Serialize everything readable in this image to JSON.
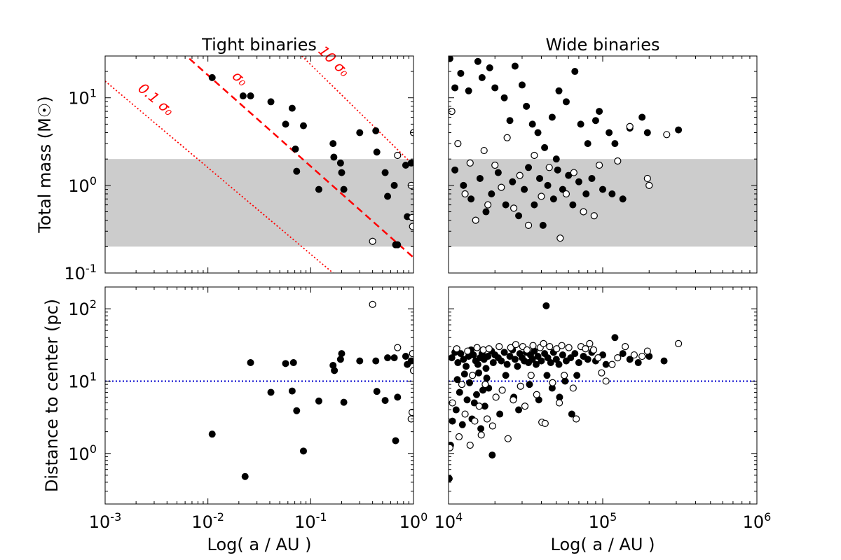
{
  "chart_data": [
    {
      "type": "scatter",
      "title": "Tight binaries",
      "xlabel": "",
      "ylabel": "Total mass (M☉)",
      "xscale": "log",
      "yscale": "log",
      "xlim": [
        0.001,
        1
      ],
      "ylim": [
        0.1,
        30
      ],
      "x_tick_labels": [],
      "y_tick_labels": [
        "10^1",
        "10^0",
        "10^-1"
      ],
      "band": {
        "y": [
          0.2,
          2.0
        ],
        "color": "#cccccc"
      },
      "lines": [
        {
          "label": "0.1 σ₀",
          "style": "dotted",
          "color": "#ff0000",
          "x": [
            0.001,
            0.165
          ],
          "y": [
            15.5,
            0.1
          ]
        },
        {
          "label": "σ₀",
          "style": "dashed",
          "color": "#ff0000",
          "x": [
            0.0066,
            1.0
          ],
          "y": [
            28,
            0.15
          ]
        },
        {
          "label": "10 σ₀",
          "style": "dotted",
          "color": "#ff0000",
          "x": [
            0.082,
            1.0
          ],
          "y": [
            30,
            1.7
          ]
        }
      ],
      "filled": [
        [
          0.011,
          17
        ],
        [
          0.022,
          10.5
        ],
        [
          0.026,
          10.5
        ],
        [
          0.041,
          9
        ],
        [
          0.057,
          5
        ],
        [
          0.066,
          7.6
        ],
        [
          0.071,
          2.6
        ],
        [
          0.073,
          1.45
        ],
        [
          0.085,
          4.8
        ],
        [
          0.12,
          0.9
        ],
        [
          0.165,
          3.0
        ],
        [
          0.168,
          2.1
        ],
        [
          0.195,
          1.8
        ],
        [
          0.2,
          1.4
        ],
        [
          0.21,
          0.9
        ],
        [
          0.3,
          4.0
        ],
        [
          0.43,
          4.2
        ],
        [
          0.44,
          2.4
        ],
        [
          0.53,
          1.4
        ],
        [
          0.56,
          0.75
        ],
        [
          0.65,
          1.0
        ],
        [
          0.67,
          0.21
        ],
        [
          0.7,
          0.21
        ],
        [
          0.84,
          1.7
        ],
        [
          0.87,
          0.44
        ],
        [
          0.95,
          1.8
        ]
      ],
      "open": [
        [
          0.4,
          0.23
        ],
        [
          0.7,
          2.2
        ],
        [
          0.95,
          1.0
        ],
        [
          0.97,
          0.43
        ],
        [
          0.98,
          0.34
        ],
        [
          1.0,
          4.0
        ]
      ]
    },
    {
      "type": "scatter",
      "title": "Wide binaries",
      "xlabel": "",
      "ylabel": "",
      "xscale": "log",
      "yscale": "log",
      "xlim": [
        10000,
        1000000
      ],
      "ylim": [
        0.1,
        30
      ],
      "x_tick_labels": [],
      "y_tick_labels": [],
      "band": {
        "y": [
          0.2,
          2.0
        ],
        "color": "#cccccc"
      },
      "lines": [],
      "filled": [
        [
          10200,
          28
        ],
        [
          11000,
          13
        ],
        [
          12000,
          19
        ],
        [
          13500,
          12
        ],
        [
          15500,
          26
        ],
        [
          16500,
          17
        ],
        [
          18500,
          22
        ],
        [
          20000,
          13
        ],
        [
          23000,
          10
        ],
        [
          25000,
          5.5
        ],
        [
          27000,
          23
        ],
        [
          30000,
          14
        ],
        [
          32000,
          8
        ],
        [
          35000,
          5
        ],
        [
          38000,
          4
        ],
        [
          42000,
          2.7
        ],
        [
          47000,
          6
        ],
        [
          50000,
          2
        ],
        [
          52000,
          12
        ],
        [
          58000,
          9
        ],
        [
          66000,
          20
        ],
        [
          72000,
          5
        ],
        [
          80000,
          3
        ],
        [
          90000,
          5.5
        ],
        [
          95000,
          7
        ],
        [
          110000,
          4
        ],
        [
          120000,
          3
        ],
        [
          150000,
          4.5
        ],
        [
          180000,
          6
        ],
        [
          195000,
          4
        ],
        [
          310000,
          4.3
        ],
        [
          11000,
          1.5
        ],
        [
          12500,
          1
        ],
        [
          14000,
          0.7
        ],
        [
          16000,
          1.2
        ],
        [
          17500,
          0.5
        ],
        [
          19000,
          0.8
        ],
        [
          21000,
          1.4
        ],
        [
          23500,
          0.6
        ],
        [
          26000,
          1.1
        ],
        [
          28500,
          0.45
        ],
        [
          31000,
          0.9
        ],
        [
          33000,
          1.6
        ],
        [
          36000,
          0.6
        ],
        [
          39000,
          1.2
        ],
        [
          41000,
          0.35
        ],
        [
          44000,
          1.0
        ],
        [
          48000,
          0.7
        ],
        [
          51000,
          1.5
        ],
        [
          55000,
          0.9
        ],
        [
          60000,
          1.3
        ],
        [
          64000,
          0.6
        ],
        [
          70000,
          1.1
        ],
        [
          78000,
          0.8
        ],
        [
          85000,
          1.2
        ],
        [
          100000,
          0.9
        ],
        [
          115000,
          0.8
        ],
        [
          135000,
          0.7
        ]
      ],
      "open": [
        [
          10500,
          7
        ],
        [
          11500,
          3
        ],
        [
          12800,
          0.8
        ],
        [
          13800,
          1.8
        ],
        [
          15000,
          0.4
        ],
        [
          17000,
          2.5
        ],
        [
          18000,
          0.6
        ],
        [
          20000,
          1.7
        ],
        [
          22000,
          0.95
        ],
        [
          24000,
          3.5
        ],
        [
          26500,
          0.55
        ],
        [
          29000,
          1.3
        ],
        [
          33000,
          0.35
        ],
        [
          36000,
          2.2
        ],
        [
          40000,
          0.75
        ],
        [
          45000,
          1.6
        ],
        [
          53000,
          0.25
        ],
        [
          58000,
          0.8
        ],
        [
          65000,
          1.4
        ],
        [
          75000,
          0.5
        ],
        [
          88000,
          0.45
        ],
        [
          95000,
          1.7
        ],
        [
          125000,
          1.9
        ],
        [
          150000,
          4.7
        ],
        [
          195000,
          1.2
        ],
        [
          200000,
          1.0
        ],
        [
          260000,
          3.8
        ]
      ]
    },
    {
      "type": "scatter",
      "title": "",
      "xlabel": "Log( a / AU )",
      "ylabel": "Distance to center (pc)",
      "xscale": "log",
      "yscale": "log",
      "xlim": [
        0.001,
        1
      ],
      "ylim": [
        0.2,
        200
      ],
      "x_tick_labels": [
        "10^-3",
        "10^-2",
        "10^-1",
        "10^0"
      ],
      "y_tick_labels": [
        "10^2",
        "10^1",
        "10^0"
      ],
      "hline": {
        "y": 10,
        "style": "dotted",
        "color": "#0000cc"
      },
      "filled": [
        [
          0.011,
          1.85
        ],
        [
          0.023,
          0.48
        ],
        [
          0.026,
          18
        ],
        [
          0.041,
          7
        ],
        [
          0.057,
          17.5
        ],
        [
          0.066,
          7.3
        ],
        [
          0.068,
          18
        ],
        [
          0.073,
          3.9
        ],
        [
          0.085,
          1.08
        ],
        [
          0.12,
          5.3
        ],
        [
          0.165,
          16.5
        ],
        [
          0.17,
          14
        ],
        [
          0.195,
          20
        ],
        [
          0.2,
          24
        ],
        [
          0.21,
          5.1
        ],
        [
          0.3,
          19
        ],
        [
          0.43,
          19
        ],
        [
          0.44,
          7.2
        ],
        [
          0.53,
          5.4
        ],
        [
          0.56,
          21
        ],
        [
          0.65,
          21
        ],
        [
          0.67,
          1.5
        ],
        [
          0.7,
          6
        ],
        [
          0.84,
          22
        ],
        [
          0.87,
          17
        ],
        [
          0.95,
          19
        ]
      ],
      "open": [
        [
          0.4,
          115
        ],
        [
          0.7,
          29
        ],
        [
          0.95,
          3.0
        ],
        [
          0.97,
          3.7
        ],
        [
          0.98,
          24
        ],
        [
          1.0,
          14
        ]
      ]
    },
    {
      "type": "scatter",
      "title": "",
      "xlabel": "Log( a / AU )",
      "ylabel": "",
      "xscale": "log",
      "yscale": "log",
      "xlim": [
        10000,
        1000000
      ],
      "ylim": [
        0.2,
        200
      ],
      "x_tick_labels": [
        "10^4",
        "10^5",
        "10^6"
      ],
      "y_tick_labels": [],
      "hline": {
        "y": 10,
        "style": "dotted",
        "color": "#0000cc"
      },
      "filled": [
        [
          10100,
          0.45
        ],
        [
          10300,
          1.3
        ],
        [
          10500,
          21
        ],
        [
          11000,
          25
        ],
        [
          11500,
          18
        ],
        [
          12000,
          24
        ],
        [
          12500,
          20
        ],
        [
          13000,
          16
        ],
        [
          13500,
          22
        ],
        [
          14000,
          27
        ],
        [
          14500,
          23
        ],
        [
          15000,
          19
        ],
        [
          15500,
          17
        ],
        [
          16000,
          21
        ],
        [
          16500,
          24
        ],
        [
          17000,
          20
        ],
        [
          17500,
          15
        ],
        [
          18000,
          22
        ],
        [
          19000,
          26
        ],
        [
          19500,
          18
        ],
        [
          20000,
          23
        ],
        [
          21000,
          21
        ],
        [
          22000,
          19
        ],
        [
          23000,
          25
        ],
        [
          24000,
          17
        ],
        [
          25000,
          22
        ],
        [
          26000,
          27
        ],
        [
          27000,
          20
        ],
        [
          28000,
          16
        ],
        [
          29000,
          24
        ],
        [
          30000,
          21
        ],
        [
          31000,
          19
        ],
        [
          32000,
          25
        ],
        [
          33000,
          18
        ],
        [
          34000,
          23
        ],
        [
          35000,
          20
        ],
        [
          36000,
          26
        ],
        [
          37000,
          17
        ],
        [
          38000,
          22
        ],
        [
          40000,
          19
        ],
        [
          42000,
          24
        ],
        [
          43000,
          110
        ],
        [
          44000,
          21
        ],
        [
          46000,
          18
        ],
        [
          48000,
          25
        ],
        [
          50000,
          20
        ],
        [
          52000,
          17
        ],
        [
          55000,
          23
        ],
        [
          58000,
          19
        ],
        [
          62000,
          21
        ],
        [
          66000,
          24
        ],
        [
          70000,
          18
        ],
        [
          75000,
          22
        ],
        [
          80000,
          20
        ],
        [
          85000,
          25
        ],
        [
          90000,
          19
        ],
        [
          100000,
          23
        ],
        [
          105000,
          17
        ],
        [
          120000,
          40
        ],
        [
          135000,
          24
        ],
        [
          150000,
          20
        ],
        [
          170000,
          18
        ],
        [
          200000,
          22
        ],
        [
          250000,
          19
        ],
        [
          11200,
          4
        ],
        [
          11800,
          7
        ],
        [
          12300,
          2.5
        ],
        [
          13200,
          5.5
        ],
        [
          14200,
          3
        ],
        [
          15200,
          6.5
        ],
        [
          16200,
          2.2
        ],
        [
          17200,
          4.5
        ],
        [
          18200,
          8
        ],
        [
          19200,
          0.95
        ],
        [
          21500,
          3.5
        ],
        [
          23500,
          12
        ],
        [
          26500,
          6
        ],
        [
          28500,
          4
        ],
        [
          33500,
          9
        ],
        [
          38500,
          5.5
        ],
        [
          43500,
          12
        ],
        [
          47000,
          8
        ],
        [
          52500,
          6
        ],
        [
          57000,
          10
        ],
        [
          63000,
          3.5
        ],
        [
          68000,
          12
        ],
        [
          10600,
          2.8
        ],
        [
          11400,
          10.5
        ],
        [
          12700,
          12.5
        ],
        [
          13700,
          9.5
        ],
        [
          14700,
          5
        ],
        [
          15700,
          13
        ],
        [
          16700,
          7.5
        ],
        [
          17700,
          11
        ]
      ],
      "open": [
        [
          10200,
          1.2
        ],
        [
          10600,
          5
        ],
        [
          11300,
          28
        ],
        [
          11700,
          1.7
        ],
        [
          12200,
          9
        ],
        [
          12800,
          3.5
        ],
        [
          13300,
          26
        ],
        [
          13800,
          1.3
        ],
        [
          14300,
          12
        ],
        [
          14800,
          2.8
        ],
        [
          15300,
          29
        ],
        [
          15800,
          4.5
        ],
        [
          16300,
          1.8
        ],
        [
          16800,
          27
        ],
        [
          17300,
          9
        ],
        [
          17800,
          3
        ],
        [
          18300,
          28
        ],
        [
          19300,
          2.4
        ],
        [
          20300,
          6
        ],
        [
          21300,
          30
        ],
        [
          22300,
          7.5
        ],
        [
          24300,
          1.6
        ],
        [
          25300,
          29
        ],
        [
          26300,
          5.5
        ],
        [
          27300,
          32
        ],
        [
          29300,
          8.5
        ],
        [
          30300,
          30
        ],
        [
          31300,
          4.5
        ],
        [
          32300,
          27
        ],
        [
          34300,
          12
        ],
        [
          35300,
          31
        ],
        [
          37300,
          6.5
        ],
        [
          39300,
          29
        ],
        [
          40300,
          2.7
        ],
        [
          41300,
          33
        ],
        [
          42300,
          2.6
        ],
        [
          45300,
          30
        ],
        [
          47300,
          9.5
        ],
        [
          50300,
          28
        ],
        [
          52300,
          5
        ],
        [
          54300,
          31
        ],
        [
          56300,
          12
        ],
        [
          60300,
          29
        ],
        [
          64300,
          8
        ],
        [
          67300,
          3.0
        ],
        [
          72300,
          30
        ],
        [
          77300,
          28
        ],
        [
          82300,
          33
        ],
        [
          87300,
          27
        ],
        [
          93300,
          21
        ],
        [
          98300,
          13
        ],
        [
          105000,
          10
        ],
        [
          115000,
          17
        ],
        [
          125000,
          21
        ],
        [
          140000,
          30
        ],
        [
          160000,
          23
        ],
        [
          180000,
          22
        ],
        [
          195000,
          26
        ],
        [
          310000,
          33
        ]
      ]
    }
  ]
}
